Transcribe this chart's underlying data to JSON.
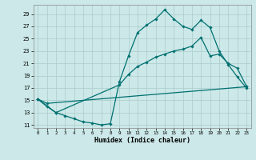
{
  "xlabel": "Humidex (Indice chaleur)",
  "bg_color": "#cce8e8",
  "grid_color": "#aacccc",
  "line_color": "#007070",
  "xlim": [
    -0.5,
    23.5
  ],
  "ylim": [
    10.5,
    30.5
  ],
  "yticks": [
    11,
    13,
    15,
    17,
    19,
    21,
    23,
    25,
    27,
    29
  ],
  "xticks": [
    0,
    1,
    2,
    3,
    4,
    5,
    6,
    7,
    8,
    9,
    10,
    11,
    12,
    13,
    14,
    15,
    16,
    17,
    18,
    19,
    20,
    21,
    22,
    23
  ],
  "line1_x": [
    0,
    1,
    2,
    3,
    4,
    5,
    6,
    7,
    8,
    9,
    10,
    11,
    12,
    13,
    14,
    15,
    16,
    17,
    18,
    19,
    20,
    21,
    22,
    23
  ],
  "line1_y": [
    15.2,
    14.0,
    13.0,
    12.5,
    12.0,
    11.5,
    11.3,
    11.0,
    11.2,
    18.0,
    22.2,
    26.0,
    27.2,
    28.2,
    29.7,
    28.2,
    27.0,
    26.5,
    28.0,
    26.8,
    23.0,
    20.8,
    18.8,
    17.0
  ],
  "line2_x": [
    0,
    2,
    9,
    10,
    11,
    12,
    13,
    14,
    15,
    16,
    17,
    18,
    19,
    20,
    21,
    22,
    23
  ],
  "line2_y": [
    15.2,
    13.0,
    17.5,
    19.2,
    20.5,
    21.2,
    22.0,
    22.5,
    23.0,
    23.3,
    23.8,
    25.2,
    22.2,
    22.5,
    21.0,
    20.2,
    17.3
  ],
  "line3_x": [
    0,
    1,
    23
  ],
  "line3_y": [
    15.2,
    14.5,
    17.2
  ]
}
